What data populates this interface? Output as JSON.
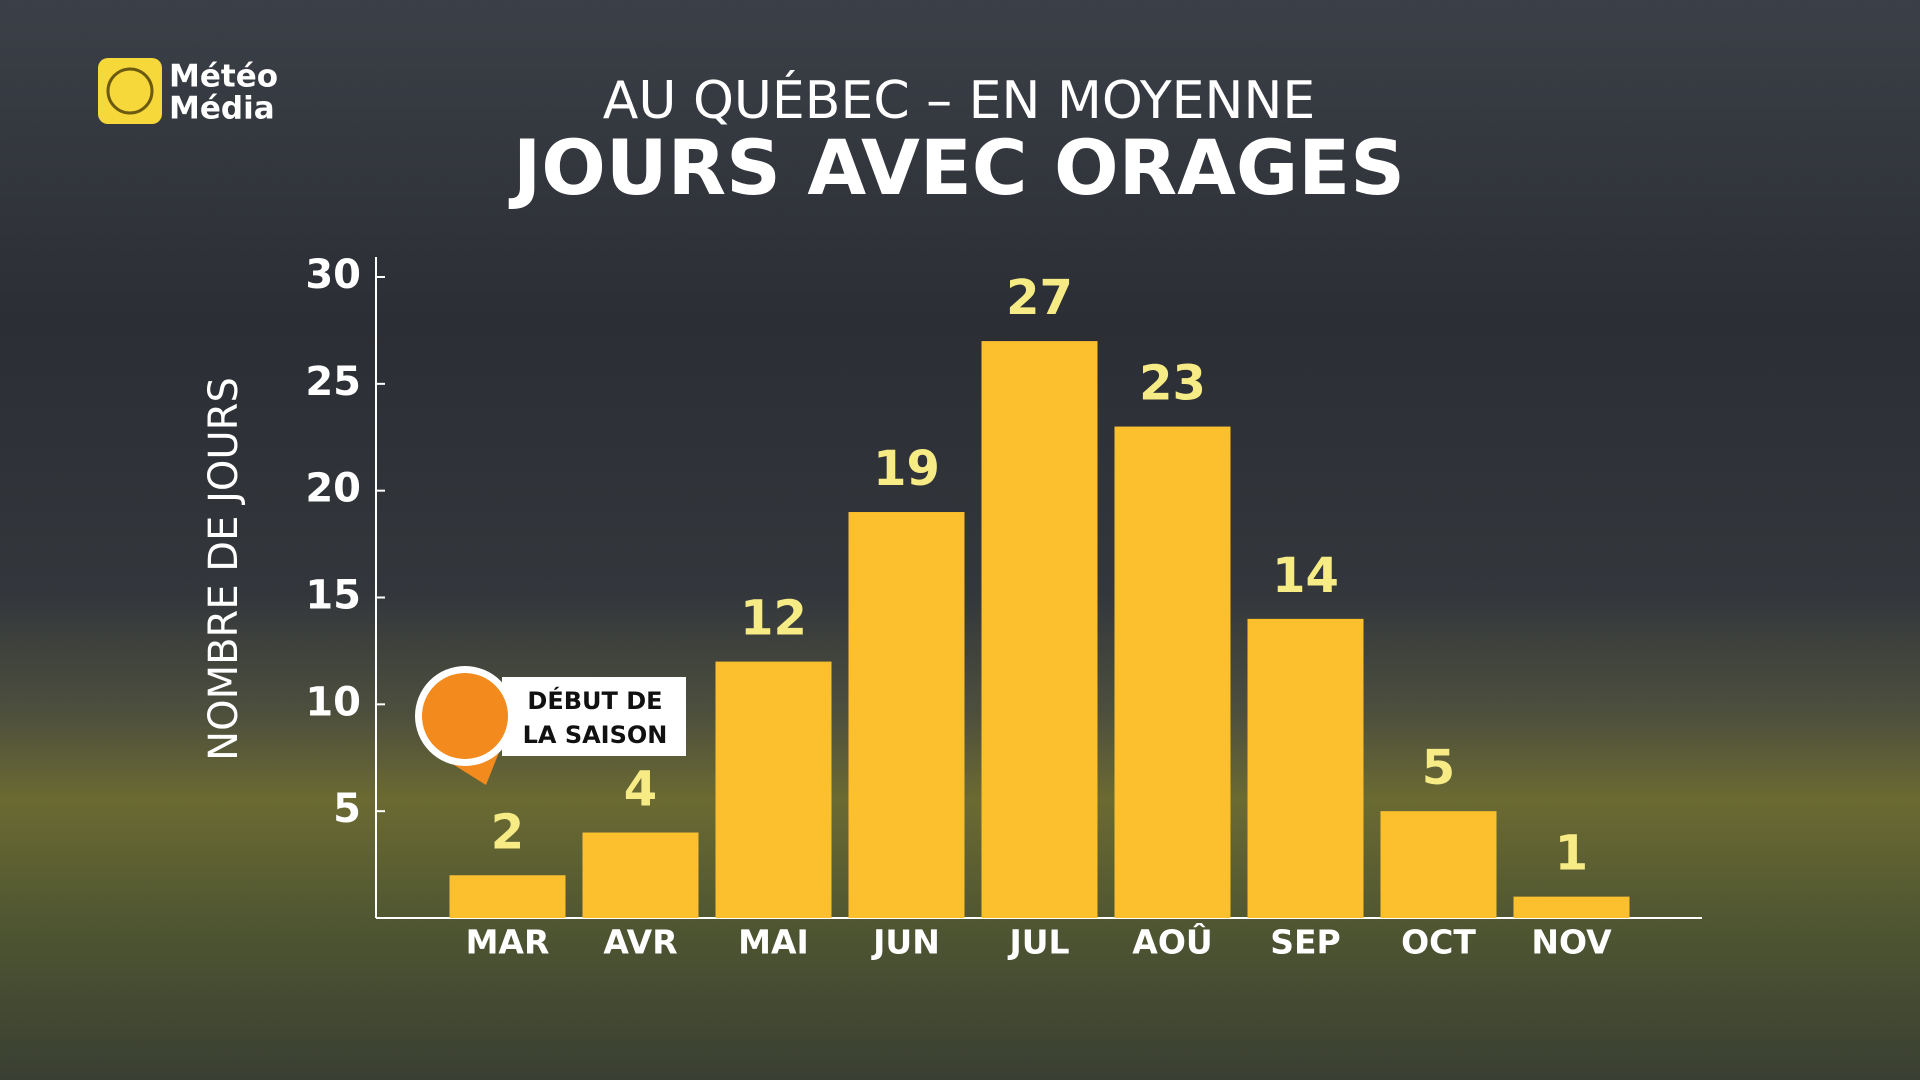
{
  "logo": [
    "Météo",
    "Média"
  ],
  "chart_data": {
    "type": "bar",
    "subtitle": "AU QUÉBEC – EN MOYENNE",
    "title": "JOURS AVEC ORAGES",
    "y_label": "NOMBRE DE JOURS",
    "categories": [
      "MAR",
      "AVR",
      "MAI",
      "JUN",
      "JUL",
      "AOÛ",
      "SEP",
      "OCT",
      "NOV"
    ],
    "values": [
      2,
      4,
      12,
      19,
      27,
      23,
      14,
      5,
      1
    ],
    "color": "#fcc02e",
    "ylim": [
      0,
      30
    ],
    "yticks": [
      5,
      10,
      15,
      20,
      25,
      30
    ],
    "grid": false,
    "annotation": [
      "DÉBUT DE",
      "LA SAISON"
    ]
  }
}
